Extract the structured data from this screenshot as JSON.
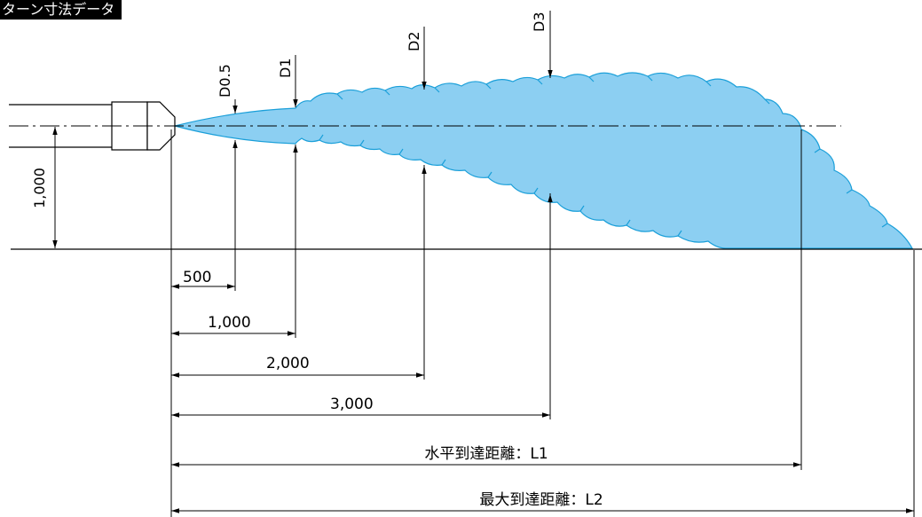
{
  "title_tab": "ターン寸法データ",
  "colors": {
    "spray_fill": "#8ccff2",
    "spray_stroke": "#1a9fd9",
    "line": "#000000",
    "title_bg": "#000000",
    "title_text": "#ffffff"
  },
  "vertical_labels": {
    "d05": "D0.5",
    "d1": "D1",
    "d2": "D2",
    "d3": "D3",
    "height": "1,000"
  },
  "dimensions": {
    "d500": "500",
    "d1000": "1,000",
    "d2000": "2,000",
    "d3000": "3,000",
    "l1": "水平到達距離：L1",
    "l2": "最大到達距離：L2"
  }
}
